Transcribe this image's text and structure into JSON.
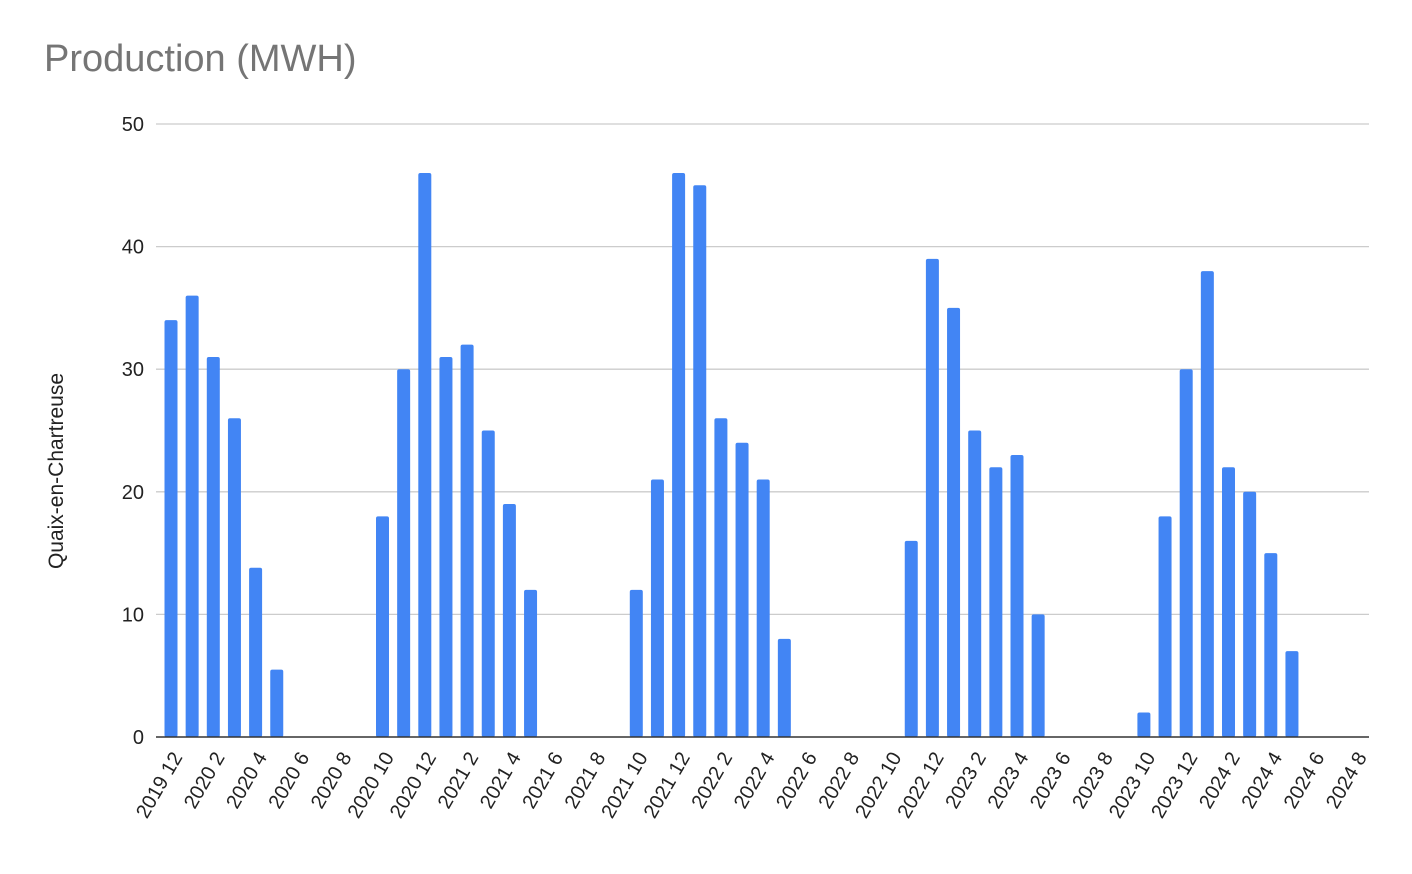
{
  "chart_data": {
    "type": "bar",
    "title": "Production (MWH)",
    "xlabel": "",
    "ylabel": "Quaix-en-Chartreuse",
    "ylim": [
      0,
      50
    ],
    "yticks": [
      0,
      10,
      20,
      30,
      40,
      50
    ],
    "grid": true,
    "legend": "none",
    "color": "#4285f4",
    "categories": [
      "2019 12",
      "2020 1",
      "2020 2",
      "2020 3",
      "2020 4",
      "2020 5",
      "2020 6",
      "2020 7",
      "2020 8",
      "2020 9",
      "2020 10",
      "2020 11",
      "2020 12",
      "2021 1",
      "2021 2",
      "2021 3",
      "2021 4",
      "2021 5",
      "2021 6",
      "2021 7",
      "2021 8",
      "2021 9",
      "2021 10",
      "2021 11",
      "2021 12",
      "2022 1",
      "2022 2",
      "2022 3",
      "2022 4",
      "2022 5",
      "2022 6",
      "2022 7",
      "2022 8",
      "2022 9",
      "2022 10",
      "2022 11",
      "2022 12",
      "2023 1",
      "2023 2",
      "2023 3",
      "2023 4",
      "2023 5",
      "2023 6",
      "2023 7",
      "2023 8",
      "2023 9",
      "2023 10",
      "2023 11",
      "2023 12",
      "2024 1",
      "2024 2",
      "2024 3",
      "2024 4",
      "2024 5",
      "2024 6",
      "2024 7",
      "2024 8"
    ],
    "tick_labels": [
      "2019 12",
      "2020 2",
      "2020 4",
      "2020 6",
      "2020 8",
      "2020 10",
      "2020 12",
      "2021 2",
      "2021 4",
      "2021 6",
      "2021 8",
      "2021 10",
      "2021 12",
      "2022 2",
      "2022 4",
      "2022 6",
      "2022 8",
      "2022 10",
      "2022 12",
      "2023 2",
      "2023 4",
      "2023 6",
      "2023 8",
      "2023 10",
      "2023 12",
      "2024 2",
      "2024 4",
      "2024 6",
      "2024 8"
    ],
    "values": [
      34,
      36,
      31,
      26,
      13.8,
      5.5,
      0,
      0,
      0,
      0,
      18,
      30,
      46,
      31,
      32,
      25,
      19,
      12,
      0,
      0,
      0,
      0,
      12,
      21,
      46,
      45,
      26,
      24,
      21,
      8,
      0,
      0,
      0,
      0,
      0,
      16,
      39,
      35,
      25,
      22,
      23,
      10,
      0,
      0,
      0,
      0,
      2,
      18,
      30,
      38,
      22,
      20,
      15,
      7,
      0,
      0,
      0
    ]
  }
}
